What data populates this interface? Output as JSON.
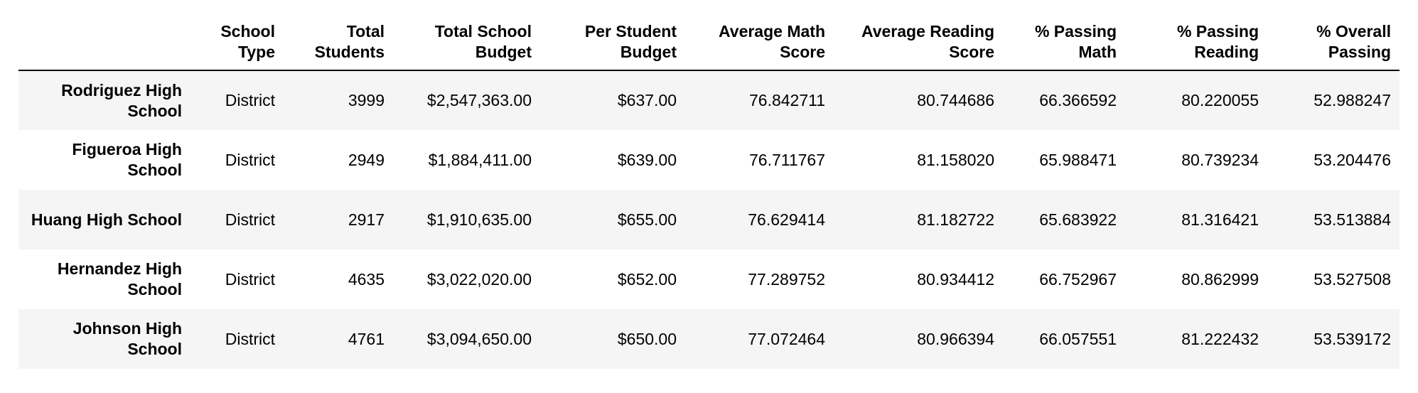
{
  "table": {
    "columns": [
      "",
      "School Type",
      "Total Students",
      "Total School Budget",
      "Per Student Budget",
      "Average Math Score",
      "Average Reading Score",
      "% Passing Math",
      "% Passing Reading",
      "% Overall Passing"
    ],
    "rows": [
      {
        "school": "Rodriguez High School",
        "cells": [
          "District",
          "3999",
          "$2,547,363.00",
          "$637.00",
          "76.842711",
          "80.744686",
          "66.366592",
          "80.220055",
          "52.988247"
        ]
      },
      {
        "school": "Figueroa High School",
        "cells": [
          "District",
          "2949",
          "$1,884,411.00",
          "$639.00",
          "76.711767",
          "81.158020",
          "65.988471",
          "80.739234",
          "53.204476"
        ]
      },
      {
        "school": "Huang High School",
        "cells": [
          "District",
          "2917",
          "$1,910,635.00",
          "$655.00",
          "76.629414",
          "81.182722",
          "65.683922",
          "81.316421",
          "53.513884"
        ]
      },
      {
        "school": "Hernandez High School",
        "cells": [
          "District",
          "4635",
          "$3,022,020.00",
          "$652.00",
          "77.289752",
          "80.934412",
          "66.752967",
          "80.862999",
          "53.527508"
        ]
      },
      {
        "school": "Johnson High School",
        "cells": [
          "District",
          "4761",
          "$3,094,650.00",
          "$650.00",
          "77.072464",
          "80.966394",
          "66.057551",
          "81.222432",
          "53.539172"
        ]
      }
    ]
  }
}
